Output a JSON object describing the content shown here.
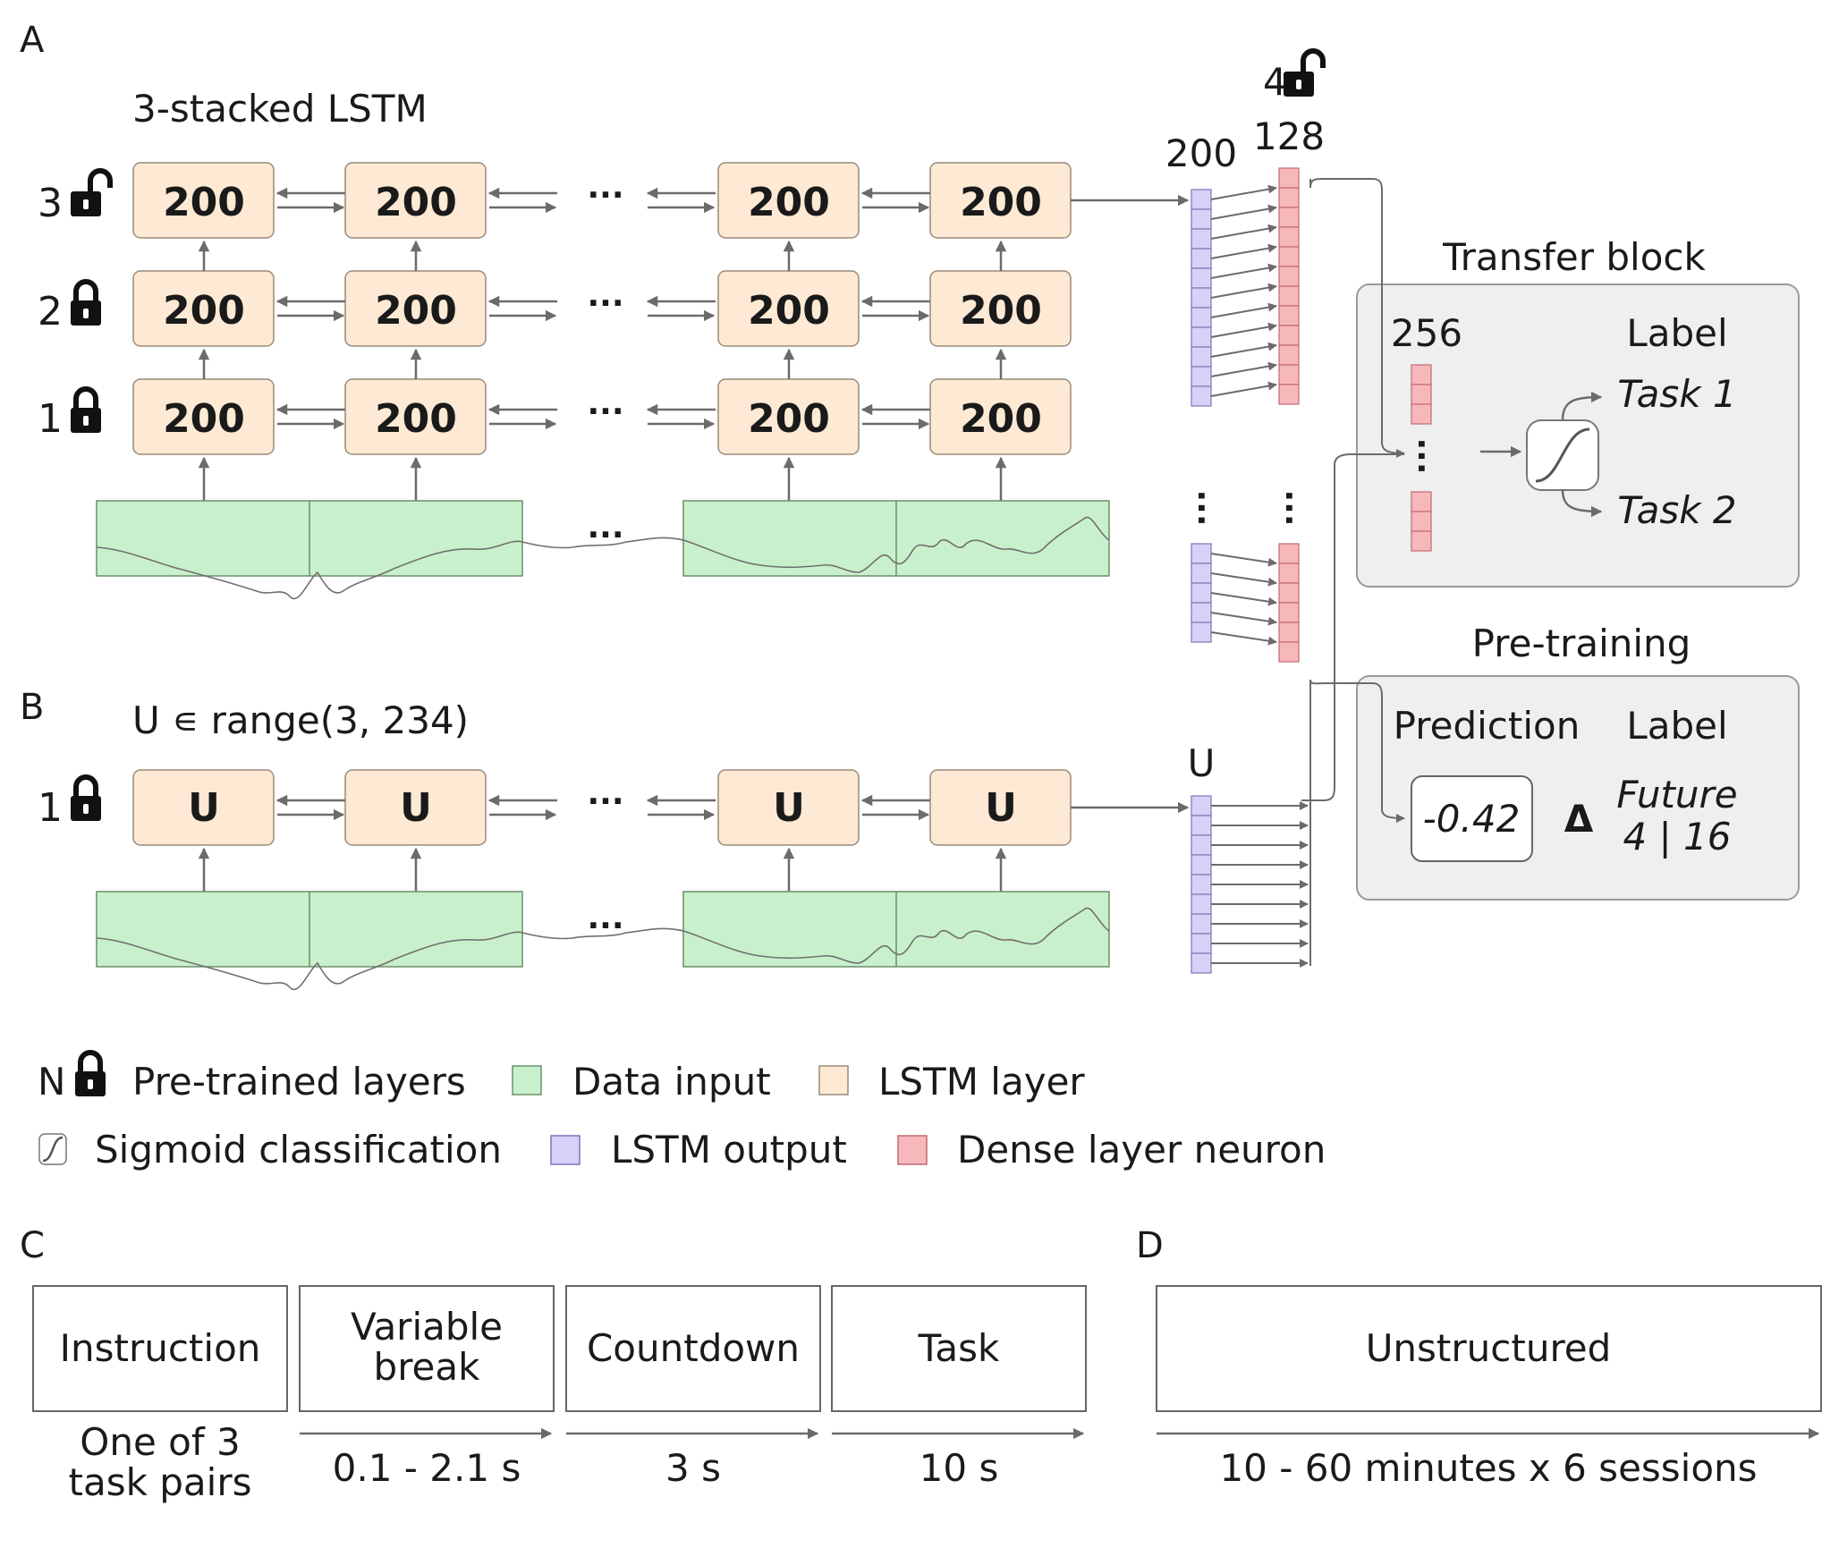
{
  "panels": {
    "a": "A",
    "b": "B",
    "c": "C",
    "d": "D"
  },
  "panel_a": {
    "title": "3-stacked LSTM",
    "layers": [
      {
        "num": "3",
        "lock": "unlocked-padlock-icon",
        "cells": [
          "200",
          "200",
          "200",
          "200"
        ]
      },
      {
        "num": "2",
        "lock": "locked-padlock-icon",
        "cells": [
          "200",
          "200",
          "200",
          "200"
        ]
      },
      {
        "num": "1",
        "lock": "locked-padlock-icon",
        "cells": [
          "200",
          "200",
          "200",
          "200"
        ]
      }
    ],
    "ellipsis": "···",
    "output_size": "200",
    "dense_num": "4",
    "dense_size": "128"
  },
  "transfer_block": {
    "title": "Transfer block",
    "size": "256",
    "label_header": "Label",
    "task1": "Task 1",
    "task2": "Task 2"
  },
  "pretraining": {
    "title": "Pre-training",
    "prediction_header": "Prediction",
    "label_header": "Label",
    "prediction_value": "-0.42",
    "delta": "Δ",
    "future_line1": "Future",
    "future_line2": "4 | 16"
  },
  "panel_b": {
    "title": "U ∊ range(3, 234)",
    "layer_num": "1",
    "cells": [
      "U",
      "U",
      "U",
      "U"
    ],
    "output_size": "U"
  },
  "legend": {
    "row1": {
      "symbol": "N",
      "pretrained": "Pre-trained layers",
      "data_input": "Data input",
      "lstm_layer": "LSTM layer"
    },
    "row2": {
      "sigmoid": "Sigmoid classification",
      "lstm_output": "LSTM output",
      "dense": "Dense layer neuron"
    }
  },
  "panel_c": {
    "boxes": [
      "Instruction",
      "Variable break",
      "Countdown",
      "Task"
    ],
    "break_lines": [
      "Variable",
      "break"
    ],
    "instruction_note": [
      "One of 3",
      "task pairs"
    ],
    "durations": [
      "0.1 - 2.1 s",
      "3 s",
      "10 s"
    ]
  },
  "panel_d": {
    "box": "Unstructured",
    "duration": "10 - 60 minutes x 6 sessions"
  },
  "colors": {
    "lstm_layer": "#fde9d4",
    "data_input": "#c9f0cc",
    "lstm_output": "#d6d2f7",
    "dense_neuron": "#f7b8bc",
    "block_bg": "#efefef"
  }
}
